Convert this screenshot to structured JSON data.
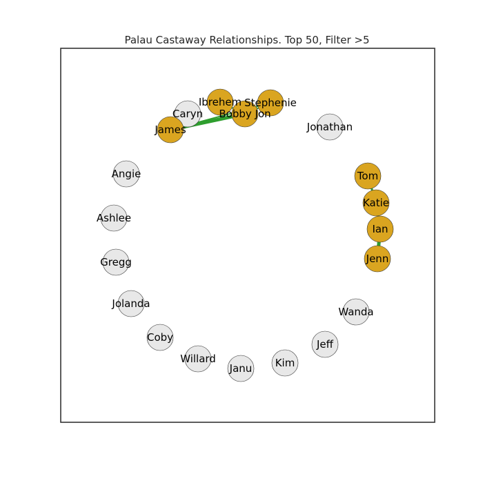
{
  "title": "Palau Castaway Relationships. Top 50, Filter >5",
  "colors": {
    "highlight_node": "#DAA520",
    "default_node": "#E8E8E8",
    "edge": "#2E9E2E",
    "frame": "#333333"
  },
  "nodes": [
    {
      "id": "Ibrehem",
      "label": "Ibrehem",
      "highlight": true
    },
    {
      "id": "Stephenie",
      "label": "Stephenie",
      "highlight": true
    },
    {
      "id": "Caryn",
      "label": "Caryn",
      "highlight": false
    },
    {
      "id": "BobbyJon",
      "label": "Bobby Jon",
      "highlight": true
    },
    {
      "id": "James",
      "label": "James",
      "highlight": true
    },
    {
      "id": "Jonathan",
      "label": "Jonathan",
      "highlight": false
    },
    {
      "id": "Angie",
      "label": "Angie",
      "highlight": false
    },
    {
      "id": "Tom",
      "label": "Tom",
      "highlight": true
    },
    {
      "id": "Katie",
      "label": "Katie",
      "highlight": true
    },
    {
      "id": "Ashlee",
      "label": "Ashlee",
      "highlight": false
    },
    {
      "id": "Ian",
      "label": "Ian",
      "highlight": true
    },
    {
      "id": "Gregg",
      "label": "Gregg",
      "highlight": false
    },
    {
      "id": "Jenn",
      "label": "Jenn",
      "highlight": true
    },
    {
      "id": "Jolanda",
      "label": "Jolanda",
      "highlight": false
    },
    {
      "id": "Wanda",
      "label": "Wanda",
      "highlight": false
    },
    {
      "id": "Coby",
      "label": "Coby",
      "highlight": false
    },
    {
      "id": "Jeff",
      "label": "Jeff",
      "highlight": false
    },
    {
      "id": "Willard",
      "label": "Willard",
      "highlight": false
    },
    {
      "id": "Kim",
      "label": "Kim",
      "highlight": false
    },
    {
      "id": "Janu",
      "label": "Janu",
      "highlight": false
    }
  ],
  "edges": [
    {
      "source": "James",
      "target": "BobbyJon",
      "weight": 5
    },
    {
      "source": "James",
      "target": "Stephenie",
      "weight": 2
    },
    {
      "source": "Ibrehem",
      "target": "BobbyJon",
      "weight": 2
    },
    {
      "source": "BobbyJon",
      "target": "Stephenie",
      "weight": 2
    },
    {
      "source": "Tom",
      "target": "Katie",
      "weight": 3
    },
    {
      "source": "Katie",
      "target": "Ian",
      "weight": 3
    },
    {
      "source": "Ian",
      "target": "Jenn",
      "weight": 5
    }
  ]
}
